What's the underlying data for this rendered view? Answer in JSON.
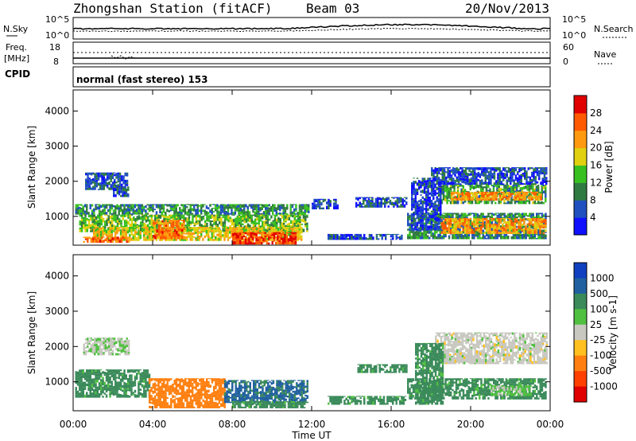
{
  "header": {
    "station": "Zhongshan Station (fitACF)",
    "beam": "Beam 03",
    "date": "20/Nov/2013"
  },
  "noise_panel": {
    "left_label": "N.Sky",
    "right_label": "N.Search",
    "ticks": [
      "10^5",
      "10^0"
    ]
  },
  "freq_panel": {
    "left_label_1": "Freq.",
    "left_label_2": "[MHz]",
    "left_ticks": [
      "18",
      "8"
    ],
    "right_label": "Nave",
    "right_ticks": [
      "60",
      "0"
    ]
  },
  "cpid": {
    "label": "CPID",
    "text": "normal (fast stereo) 153"
  },
  "chart_data": [
    {
      "type": "heatmap",
      "title": "",
      "xlabel": "Time UT",
      "ylabel": "Slant Range [km]",
      "xlim": [
        0,
        24
      ],
      "ylim": [
        180,
        4600
      ],
      "x_ticks": [
        "00:00",
        "04:00",
        "08:00",
        "12:00",
        "16:00",
        "20:00",
        "00:00"
      ],
      "y_ticks": [
        "1000",
        "2000",
        "3000",
        "4000"
      ],
      "colorbar": {
        "label": "Power [dB]",
        "range": [
          0,
          32
        ],
        "ticks": [
          "4",
          "8",
          "12",
          "16",
          "20",
          "24",
          "28"
        ],
        "colors": [
          "#1010ff",
          "#2050c0",
          "#2f7a40",
          "#38c020",
          "#e0d010",
          "#ff9a10",
          "#ff5a00",
          "#e00000"
        ]
      },
      "regions": [
        {
          "t0": 0.6,
          "t1": 2.7,
          "r0": 1750,
          "r1": 2250,
          "value": 6
        },
        {
          "t0": 2.0,
          "t1": 2.8,
          "r0": 1550,
          "r1": 1850,
          "value": 6
        },
        {
          "t0": 0.1,
          "t1": 11.8,
          "r0": 1050,
          "r1": 1350,
          "value": 10
        },
        {
          "t0": 0.3,
          "t1": 11.8,
          "r0": 550,
          "r1": 1050,
          "value": 14
        },
        {
          "t0": 1.0,
          "t1": 11.5,
          "r0": 300,
          "r1": 700,
          "value": 19
        },
        {
          "t0": 4.0,
          "t1": 5.6,
          "r0": 350,
          "r1": 900,
          "value": 24
        },
        {
          "t0": 8.0,
          "t1": 11.2,
          "r0": 200,
          "r1": 550,
          "value": 28
        },
        {
          "t0": 0.5,
          "t1": 2.8,
          "r0": 250,
          "r1": 420,
          "value": 25
        },
        {
          "t0": 12.0,
          "t1": 13.3,
          "r0": 1200,
          "r1": 1500,
          "value": 6
        },
        {
          "t0": 14.2,
          "t1": 16.8,
          "r0": 1250,
          "r1": 1550,
          "value": 6
        },
        {
          "t0": 12.8,
          "t1": 16.5,
          "r0": 330,
          "r1": 500,
          "value": 6
        },
        {
          "t0": 16.8,
          "t1": 23.8,
          "r0": 350,
          "r1": 1100,
          "value": 10
        },
        {
          "t0": 18.5,
          "t1": 23.8,
          "r0": 500,
          "r1": 950,
          "value": 22
        },
        {
          "t0": 18.5,
          "t1": 23.8,
          "r0": 1350,
          "r1": 1900,
          "value": 12
        },
        {
          "t0": 19.0,
          "t1": 23.5,
          "r0": 1450,
          "r1": 1700,
          "value": 23
        },
        {
          "t0": 18.0,
          "t1": 23.8,
          "r0": 1900,
          "r1": 2400,
          "value": 6
        },
        {
          "t0": 17.0,
          "t1": 18.5,
          "r0": 600,
          "r1": 2100,
          "value": 5
        }
      ]
    },
    {
      "type": "heatmap",
      "title": "",
      "xlabel": "Time UT",
      "ylabel": "Slant Range [km]",
      "xlim": [
        0,
        24
      ],
      "ylim": [
        180,
        4600
      ],
      "x_ticks": [
        "00:00",
        "04:00",
        "08:00",
        "12:00",
        "16:00",
        "20:00",
        "00:00"
      ],
      "y_ticks": [
        "1000",
        "2000",
        "3000",
        "4000"
      ],
      "colorbar": {
        "label": "Velocity [m s-1]",
        "levels": [
          "1000",
          "500",
          "100",
          "25",
          "-25",
          "-100",
          "-500",
          "-1000"
        ],
        "colors": [
          "#1040c0",
          "#2060a0",
          "#3a8a5a",
          "#50c040",
          "#c8c8c0",
          "#ffc020",
          "#ff8010",
          "#ff4000",
          "#e00000"
        ]
      },
      "regions": [
        {
          "t0": 0.5,
          "t1": 2.8,
          "r0": 1750,
          "r1": 2250,
          "value": 20
        },
        {
          "t0": 0.1,
          "t1": 3.8,
          "r0": 550,
          "r1": 1350,
          "value": 150
        },
        {
          "t0": 3.8,
          "t1": 7.6,
          "r0": 250,
          "r1": 1100,
          "value": -300
        },
        {
          "t0": 7.6,
          "t1": 11.8,
          "r0": 400,
          "r1": 1050,
          "value": 600
        },
        {
          "t0": 8.0,
          "t1": 11.6,
          "r0": 250,
          "r1": 450,
          "value": 150
        },
        {
          "t0": 12.8,
          "t1": 16.7,
          "r0": 350,
          "r1": 600,
          "value": 150
        },
        {
          "t0": 14.3,
          "t1": 16.8,
          "r0": 1250,
          "r1": 1500,
          "value": 150
        },
        {
          "t0": 16.8,
          "t1": 23.8,
          "r0": 500,
          "r1": 1100,
          "value": 150
        },
        {
          "t0": 18.2,
          "t1": 23.8,
          "r0": 1500,
          "r1": 2400,
          "value": 0
        },
        {
          "t0": 17.2,
          "t1": 18.6,
          "r0": 350,
          "r1": 2100,
          "value": 150
        },
        {
          "t0": 21.0,
          "t1": 23.0,
          "r0": 600,
          "r1": 900,
          "value": 40
        }
      ]
    }
  ]
}
